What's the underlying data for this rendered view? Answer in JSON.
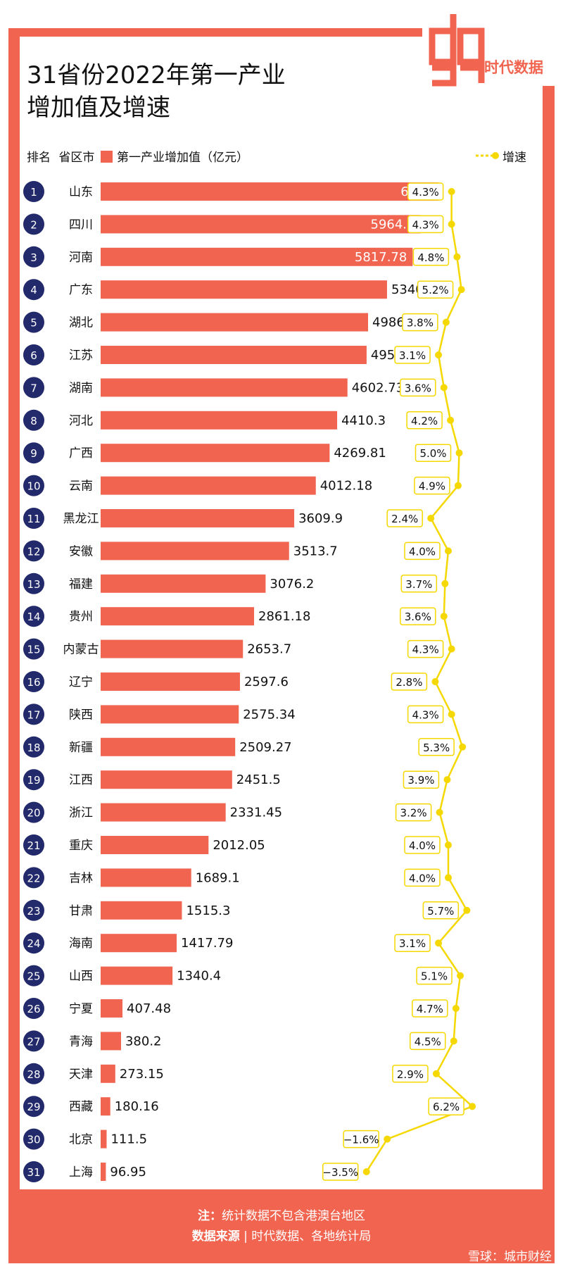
{
  "title_line1": "31省份2022年第一产业",
  "title_line2": "增加值及增速",
  "logo": {
    "brand": "data",
    "text": "时代数据"
  },
  "header": {
    "rank": "排名",
    "region": "省区市",
    "legend_value": "第一产业增加值（亿元）",
    "legend_speed": "增速"
  },
  "footer": {
    "note_label": "注：",
    "note_text": "统计数据不包含港澳台地区",
    "source_label": "数据来源",
    "source_sep": "|",
    "source_text": "时代数据、各地统计局"
  },
  "watermark": "雪球：城市财经",
  "colors": {
    "bar": "#f06450",
    "badge": "#232a6b",
    "speed": "#f5d800"
  },
  "chart_data": {
    "type": "bar",
    "orientation": "horizontal",
    "title": "31省份2022年第一产业增加值及增速",
    "value_unit": "亿元",
    "ranks": [
      "1",
      "2",
      "3",
      "4",
      "5",
      "6",
      "7",
      "8",
      "9",
      "10",
      "11",
      "12",
      "13",
      "14",
      "15",
      "16",
      "17",
      "18",
      "19",
      "20",
      "21",
      "22",
      "23",
      "24",
      "25",
      "26",
      "27",
      "28",
      "29",
      "30",
      "31"
    ],
    "categories": [
      "山东",
      "四川",
      "河南",
      "广东",
      "湖北",
      "江苏",
      "湖南",
      "河北",
      "广西",
      "云南",
      "黑龙江",
      "安徽",
      "福建",
      "贵州",
      "内蒙古",
      "辽宁",
      "陕西",
      "新疆",
      "江西",
      "浙江",
      "重庆",
      "吉林",
      "甘肃",
      "海南",
      "山西",
      "宁夏",
      "青海",
      "天津",
      "西藏",
      "北京",
      "上海"
    ],
    "series": [
      {
        "name": "第一产业增加值（亿元）",
        "type": "bar",
        "values": [
          6299,
          5964.3,
          5817.78,
          5340.36,
          4986.72,
          4959.4,
          4602.73,
          4410.3,
          4269.81,
          4012.18,
          3609.9,
          3513.7,
          3076.2,
          2861.18,
          2653.7,
          2597.6,
          2575.34,
          2509.27,
          2451.5,
          2331.45,
          2012.05,
          1689.1,
          1515.3,
          1417.79,
          1340.4,
          407.48,
          380.2,
          273.15,
          180.16,
          111.5,
          96.95
        ],
        "labels": [
          "6299",
          "5964.3",
          "5817.78",
          "5340.36",
          "4986.72",
          "4959.4",
          "4602.73",
          "4410.3",
          "4269.81",
          "4012.18",
          "3609.9",
          "3513.7",
          "3076.2",
          "2861.18",
          "2653.7",
          "2597.6",
          "2575.34",
          "2509.27",
          "2451.5",
          "2331.45",
          "2012.05",
          "1689.1",
          "1515.3",
          "1417.79",
          "1340.4",
          "407.48",
          "380.2",
          "273.15",
          "180.16",
          "111.5",
          "96.95"
        ]
      },
      {
        "name": "增速",
        "type": "line",
        "values": [
          4.3,
          4.3,
          4.8,
          5.2,
          3.8,
          3.1,
          3.6,
          4.2,
          5.0,
          4.9,
          2.4,
          4.0,
          3.7,
          3.6,
          4.3,
          2.8,
          4.3,
          5.3,
          3.9,
          3.2,
          4.0,
          4.0,
          5.7,
          3.1,
          5.1,
          4.7,
          4.5,
          2.9,
          6.2,
          -1.6,
          -3.5
        ],
        "labels": [
          "4.3%",
          "4.3%",
          "4.8%",
          "5.2%",
          "3.8%",
          "3.1%",
          "3.6%",
          "4.2%",
          "5.0%",
          "4.9%",
          "2.4%",
          "4.0%",
          "3.7%",
          "3.6%",
          "4.3%",
          "2.8%",
          "4.3%",
          "5.3%",
          "3.9%",
          "3.2%",
          "4.0%",
          "4.0%",
          "5.7%",
          "3.1%",
          "5.1%",
          "4.7%",
          "4.5%",
          "2.9%",
          "6.2%",
          "−1.6%",
          "−3.5%"
        ]
      }
    ]
  }
}
